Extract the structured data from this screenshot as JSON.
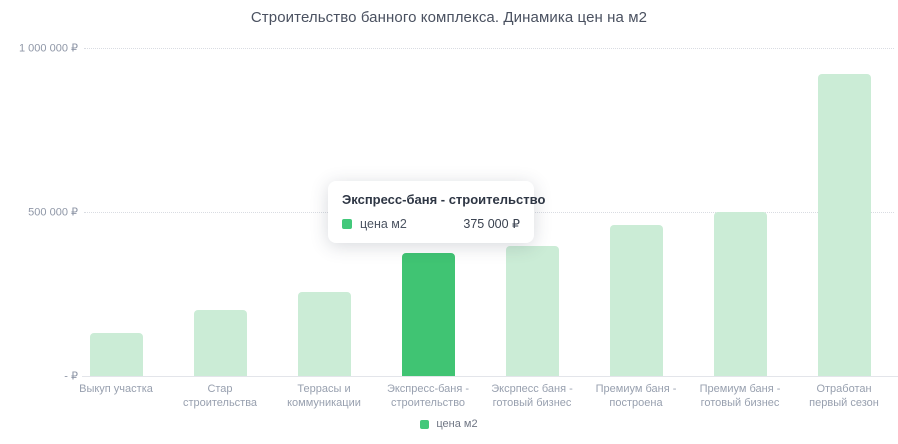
{
  "title": "Строительство банного комплекса. Динамика цен на м2",
  "colors": {
    "accent": "#42c87a",
    "bar": "#cbecd6",
    "bar_highlight": "#40c473"
  },
  "chart_data": {
    "type": "bar",
    "title": "Строительство банного комплекса. Динамика цен на м2",
    "categories": [
      "Выкуп участка",
      "Стар строительства",
      "Террасы и коммуникации",
      "Экспресс-баня - строительство",
      "Эксрпесс баня - готовый бизнес",
      "Премиум баня - построена",
      "Премиум баня - готовый бизнес",
      "Отработан первый сезон"
    ],
    "category_labels": [
      "Выкуп участка",
      "Стар\nстроительства",
      "Террасы и\nкоммуникации",
      "Экспресс-баня -\nстроительство",
      "Эксрпесс баня -\nготовый бизнес",
      "Премиум баня -\nпостроена",
      "Премиум баня -\nготовый бизнес",
      "Отработан\nпервый сезон"
    ],
    "series": [
      {
        "name": "цена м2",
        "values": [
          130000,
          200000,
          255000,
          375000,
          395000,
          460000,
          500000,
          920000
        ]
      }
    ],
    "highlighted_index": 3,
    "ylim": [
      0,
      1000000
    ],
    "yticks": [
      {
        "value": 0,
        "label": "- ₽",
        "grid": false
      },
      {
        "value": 500000,
        "label": "500 000 ₽",
        "grid": true
      },
      {
        "value": 1000000,
        "label": "1 000 000 ₽",
        "grid": true
      }
    ],
    "grid": "horizontal-dotted",
    "legend_position": "bottom"
  },
  "tooltip": {
    "title": "Экспресс-баня - строительство",
    "series_label": "цена м2",
    "value": "375 000 ₽"
  },
  "legend": {
    "label": "цена м2"
  }
}
